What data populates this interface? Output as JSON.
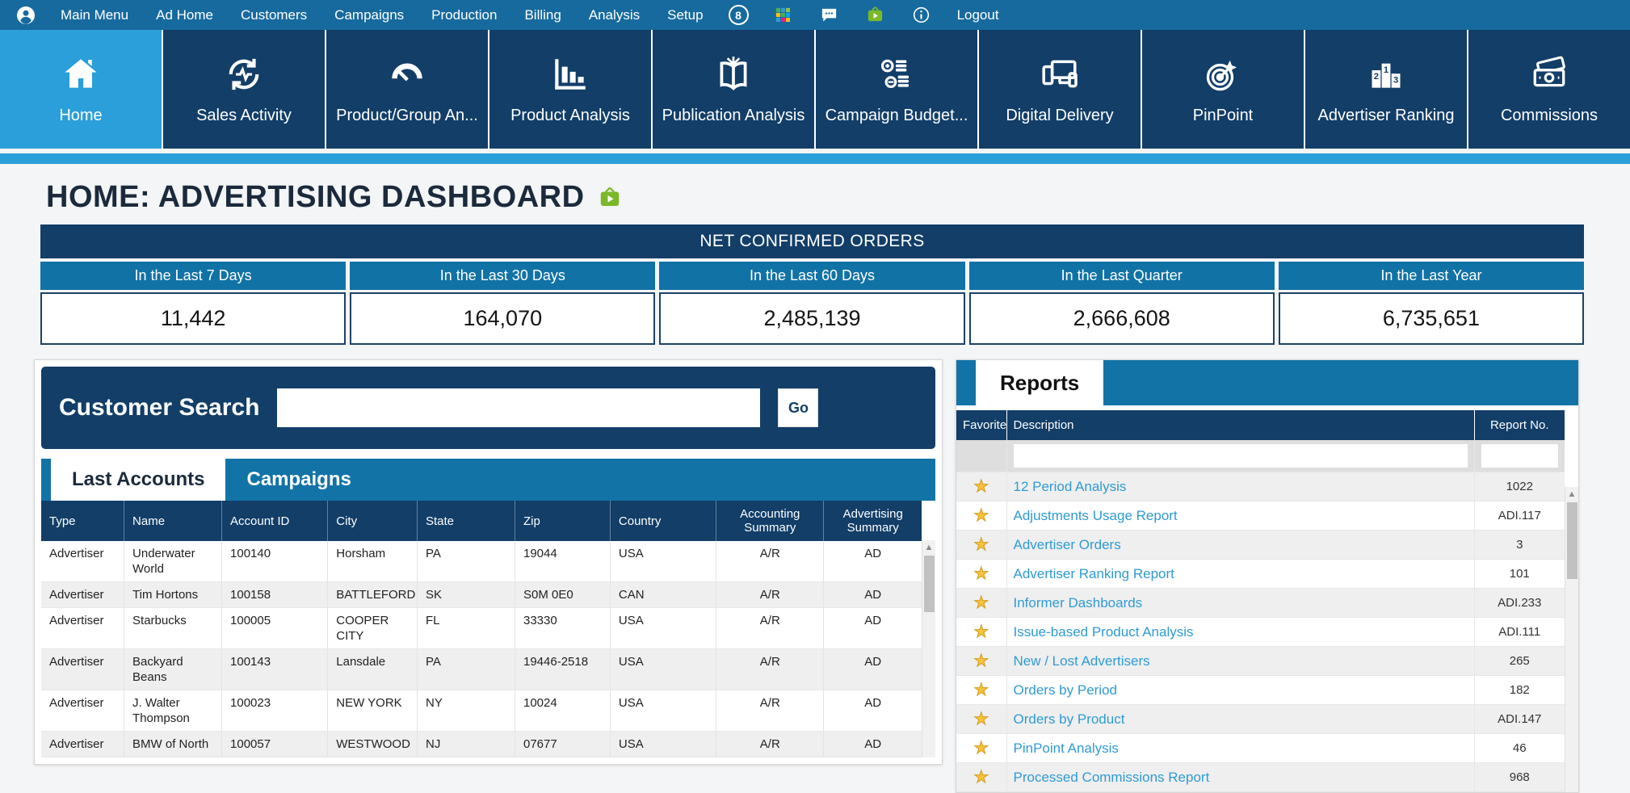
{
  "colors": {
    "topbar": "#176a9e",
    "navy": "#123e68",
    "accent_blue": "#2b9fd9",
    "panel_bar_blue": "#1273a7",
    "stat_header_blue": "#1172a5",
    "link_blue": "#2e9bd6",
    "star_gold": "#f7c33b",
    "video_green": "#7ab829"
  },
  "topbar": {
    "avatar_icon": "user-avatar-icon",
    "menu_items": [
      {
        "label": "Main Menu"
      },
      {
        "label": "Ad Home"
      },
      {
        "label": "Customers"
      },
      {
        "label": "Campaigns"
      },
      {
        "label": "Production"
      },
      {
        "label": "Billing"
      },
      {
        "label": "Analysis"
      },
      {
        "label": "Setup"
      }
    ],
    "notification_badge": "8",
    "icon_names": [
      "apps-grid-icon",
      "chat-icon",
      "video-tutorial-icon",
      "info-icon"
    ],
    "logout_label": "Logout"
  },
  "nav_tiles": [
    {
      "label": "Home",
      "icon": "home-icon",
      "active": true
    },
    {
      "label": "Sales Activity",
      "icon": "sales-activity-icon",
      "active": false
    },
    {
      "label": "Product/Group An...",
      "icon": "gauge-icon",
      "active": false
    },
    {
      "label": "Product Analysis",
      "icon": "bar-chart-icon",
      "active": false
    },
    {
      "label": "Publication Analysis",
      "icon": "book-icon",
      "active": false
    },
    {
      "label": "Campaign Budget...",
      "icon": "coins-icon",
      "active": false
    },
    {
      "label": "Digital Delivery",
      "icon": "devices-icon",
      "active": false
    },
    {
      "label": "PinPoint",
      "icon": "target-icon",
      "active": false
    },
    {
      "label": "Advertiser Ranking",
      "icon": "podium-icon",
      "active": false
    },
    {
      "label": "Commissions",
      "icon": "banknote-icon",
      "active": false
    }
  ],
  "page": {
    "title": "HOME: ADVERTISING DASHBOARD",
    "title_icon": "video-tutorial-icon"
  },
  "net_confirmed_orders": {
    "title": "NET CONFIRMED ORDERS",
    "stats": [
      {
        "label": "In the Last 7 Days",
        "value": "11,442"
      },
      {
        "label": "In the Last 30 Days",
        "value": "164,070"
      },
      {
        "label": "In the Last 60 Days",
        "value": "2,485,139"
      },
      {
        "label": "In the Last Quarter",
        "value": "2,666,608"
      },
      {
        "label": "In the Last Year",
        "value": "6,735,651"
      }
    ]
  },
  "customer_search": {
    "label": "Customer Search",
    "input_value": "",
    "go_label": "Go"
  },
  "accounts_panel": {
    "tabs": [
      {
        "label": "Last Accounts",
        "active": true
      },
      {
        "label": "Campaigns",
        "active": false
      }
    ],
    "columns": [
      "Type",
      "Name",
      "Account ID",
      "City",
      "State",
      "Zip",
      "Country",
      "Accounting Summary",
      "Advertising Summary"
    ],
    "rows": [
      {
        "type": "Advertiser",
        "name": "Underwater World",
        "account_id": "100140",
        "city": "Horsham",
        "state": "PA",
        "zip": "19044",
        "country": "USA",
        "accounting": "A/R",
        "advertising": "AD"
      },
      {
        "type": "Advertiser",
        "name": "Tim Hortons",
        "account_id": "100158",
        "city": "BATTLEFORD",
        "state": "SK",
        "zip": "S0M 0E0",
        "country": "CAN",
        "accounting": "A/R",
        "advertising": "AD"
      },
      {
        "type": "Advertiser",
        "name": "Starbucks",
        "account_id": "100005",
        "city": "COOPER CITY",
        "state": "FL",
        "zip": "33330",
        "country": "USA",
        "accounting": "A/R",
        "advertising": "AD"
      },
      {
        "type": "Advertiser",
        "name": "Backyard Beans",
        "account_id": "100143",
        "city": "Lansdale",
        "state": "PA",
        "zip": "19446-2518",
        "country": "USA",
        "accounting": "A/R",
        "advertising": "AD"
      },
      {
        "type": "Advertiser",
        "name": "J. Walter Thompson",
        "account_id": "100023",
        "city": "NEW YORK",
        "state": "NY",
        "zip": "10024",
        "country": "USA",
        "accounting": "A/R",
        "advertising": "AD"
      },
      {
        "type": "Advertiser",
        "name": "BMW of North",
        "account_id": "100057",
        "city": "WESTWOOD",
        "state": "NJ",
        "zip": "07677",
        "country": "USA",
        "accounting": "A/R",
        "advertising": "AD"
      }
    ]
  },
  "reports_panel": {
    "tab_label": "Reports",
    "columns": [
      "Favorite",
      "Description",
      "Report No."
    ],
    "favorite_icon": "favorite-star-icon",
    "filter": {
      "description_value": "",
      "report_no_value": ""
    },
    "rows": [
      {
        "description": "12 Period Analysis",
        "report_no": "1022"
      },
      {
        "description": "Adjustments Usage Report",
        "report_no": "ADI.117"
      },
      {
        "description": "Advertiser Orders",
        "report_no": "3"
      },
      {
        "description": "Advertiser Ranking Report",
        "report_no": "101"
      },
      {
        "description": "Informer Dashboards",
        "report_no": "ADI.233"
      },
      {
        "description": "Issue-based Product Analysis",
        "report_no": "ADI.111"
      },
      {
        "description": "New / Lost Advertisers",
        "report_no": "265"
      },
      {
        "description": "Orders by Period",
        "report_no": "182"
      },
      {
        "description": "Orders by Product",
        "report_no": "ADI.147"
      },
      {
        "description": "PinPoint Analysis",
        "report_no": "46"
      },
      {
        "description": "Processed Commissions Report",
        "report_no": "968"
      }
    ]
  }
}
